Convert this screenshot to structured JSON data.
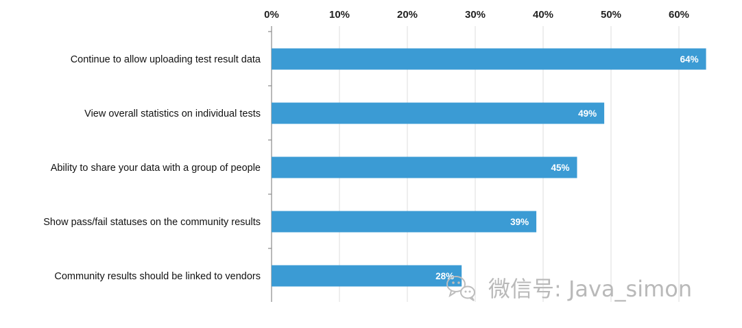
{
  "chart_data": {
    "type": "bar",
    "orientation": "horizontal",
    "title": "",
    "xlabel": "",
    "ylabel": "",
    "xlim": [
      0,
      64
    ],
    "ticks": [
      "0%",
      "10%",
      "20%",
      "30%",
      "40%",
      "50%",
      "60%"
    ],
    "tick_values": [
      0,
      10,
      20,
      30,
      40,
      50,
      60
    ],
    "categories": [
      "Continue to allow uploading test result data",
      "View overall statistics on individual tests",
      "Ability to share your data with a group of people",
      "Show pass/fail statuses on the community results",
      "Community results should be linked to vendors"
    ],
    "values": [
      64,
      49,
      45,
      39,
      28
    ],
    "value_labels": [
      "64%",
      "49%",
      "45%",
      "39%",
      "28%"
    ],
    "grid": true,
    "axis_position": "top",
    "bar_color": "#3b9bd4",
    "grid_color": "#dcdcdc"
  },
  "watermark": {
    "text": "微信号: Java_simon",
    "icon": "wechat-icon"
  }
}
